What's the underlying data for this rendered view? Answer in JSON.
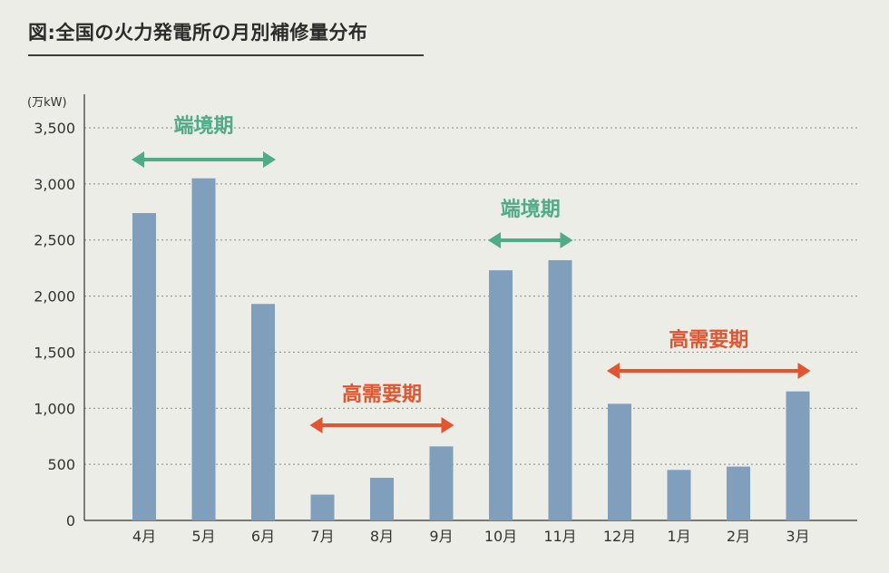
{
  "figure": {
    "title": "図:全国の火力発電所の月別補修量分布"
  },
  "chart_data": {
    "type": "bar",
    "title": "",
    "unit": "(万kW)",
    "xlabel": "",
    "ylabel": "",
    "ylim": [
      0,
      3500
    ],
    "yticks": [
      0,
      500,
      1000,
      1500,
      2000,
      2500,
      3000,
      3500
    ],
    "ytick_labels": [
      "0",
      "500",
      "1,000",
      "1,500",
      "2,000",
      "2,500",
      "3,000",
      "3,500"
    ],
    "grid": true,
    "categories": [
      "4月",
      "5月",
      "6月",
      "7月",
      "8月",
      "9月",
      "10月",
      "11月",
      "12月",
      "1月",
      "2月",
      "3月"
    ],
    "values": [
      2740,
      3050,
      1930,
      230,
      380,
      660,
      2230,
      2320,
      1040,
      450,
      480,
      1150
    ],
    "bar_color": "#7f9fbc",
    "annotations": [
      {
        "label": "端境期",
        "from": "4月",
        "to": "6月",
        "color": "#4fab88"
      },
      {
        "label": "高需要期",
        "from": "7月",
        "to": "9月",
        "color": "#e2552f"
      },
      {
        "label": "端境期",
        "from": "10月",
        "to": "11月",
        "color": "#4fab88"
      },
      {
        "label": "高需要期",
        "from": "12月",
        "to": "3月",
        "color": "#e2552f"
      }
    ]
  }
}
